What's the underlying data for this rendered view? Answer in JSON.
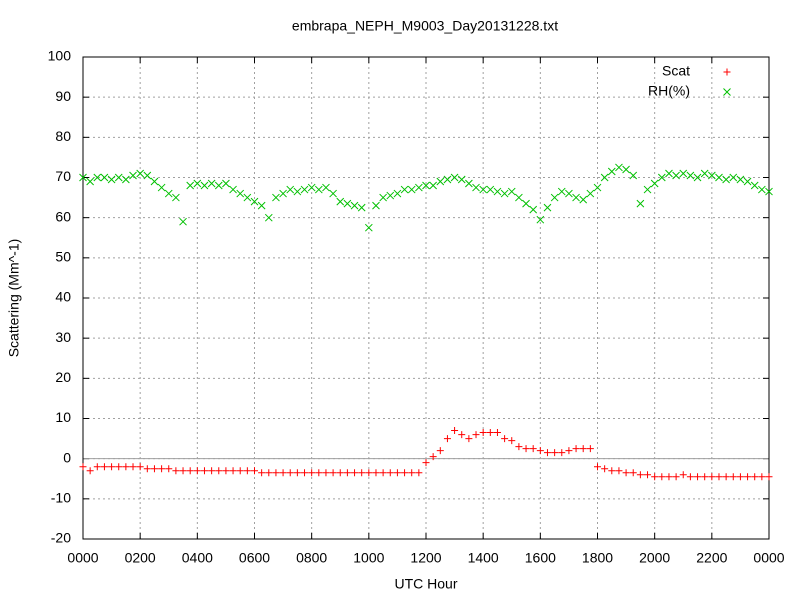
{
  "chart_data": {
    "type": "scatter",
    "title": "embrapa_NEPH_M9003_Day20131228.txt",
    "xlabel": "UTC Hour",
    "ylabel": "Scattering (Mm^-1)",
    "x": [
      0,
      0.25,
      0.5,
      0.75,
      1,
      1.25,
      1.5,
      1.75,
      2,
      2.25,
      2.5,
      2.75,
      3,
      3.25,
      3.5,
      3.75,
      4,
      4.25,
      4.5,
      4.75,
      5,
      5.25,
      5.5,
      5.75,
      6,
      6.25,
      6.5,
      6.75,
      7,
      7.25,
      7.5,
      7.75,
      8,
      8.25,
      8.5,
      8.75,
      9,
      9.25,
      9.5,
      9.75,
      10,
      10.25,
      10.5,
      10.75,
      11,
      11.25,
      11.5,
      11.75,
      12,
      12.25,
      12.5,
      12.75,
      13,
      13.25,
      13.5,
      13.75,
      14,
      14.25,
      14.5,
      14.75,
      15,
      15.25,
      15.5,
      15.75,
      16,
      16.25,
      16.5,
      16.75,
      17,
      17.25,
      17.5,
      17.75,
      18,
      18.25,
      18.5,
      18.75,
      19,
      19.25,
      19.5,
      19.75,
      20,
      20.25,
      20.5,
      20.75,
      21,
      21.25,
      21.5,
      21.75,
      22,
      22.25,
      22.5,
      22.75,
      23,
      23.25,
      23.5,
      23.75,
      24
    ],
    "series": [
      {
        "name": "Scat",
        "color": "#ff0000",
        "marker": "plus",
        "values": [
          -2,
          -3,
          -2,
          -2,
          -2,
          -2,
          -2,
          -2,
          -2,
          -2.5,
          -2.5,
          -2.5,
          -2.5,
          -3,
          -3,
          -3,
          -3,
          -3,
          -3,
          -3,
          -3,
          -3,
          -3,
          -3,
          -3,
          -3.5,
          -3.5,
          -3.5,
          -3.5,
          -3.5,
          -3.5,
          -3.5,
          -3.5,
          -3.5,
          -3.5,
          -3.5,
          -3.5,
          -3.5,
          -3.5,
          -3.5,
          -3.5,
          -3.5,
          -3.5,
          -3.5,
          -3.5,
          -3.5,
          -3.5,
          -3.5,
          -1,
          0.5,
          2,
          5,
          7,
          6,
          5,
          6,
          6.5,
          6.5,
          6.5,
          5,
          4.5,
          3,
          2.5,
          2.5,
          2,
          1.5,
          1.5,
          1.5,
          2,
          2.5,
          2.5,
          2.5,
          -2,
          -2.5,
          -3,
          -3,
          -3.5,
          -3.5,
          -4,
          -4,
          -4.5,
          -4.5,
          -4.5,
          -4.5,
          -4,
          -4.5,
          -4.5,
          -4.5,
          -4.5,
          -4.5,
          -4.5,
          -4.5,
          -4.5,
          -4.5,
          -4.5,
          -4.5,
          -4.5
        ]
      },
      {
        "name": "RH(%)",
        "color": "#00c000",
        "marker": "cross",
        "values": [
          70,
          69,
          70,
          70,
          69.5,
          70,
          69.5,
          70.5,
          71,
          70.5,
          69,
          67.5,
          66,
          65,
          59,
          68,
          68.5,
          68,
          68.5,
          68,
          68.5,
          67,
          66,
          65,
          64,
          63,
          60,
          65,
          66,
          67,
          66.5,
          67,
          67.5,
          67,
          67.5,
          66,
          64,
          63.5,
          63,
          62.5,
          57.5,
          63,
          65,
          65.5,
          66,
          67,
          67,
          67.5,
          68,
          68,
          69,
          69.5,
          70,
          69.5,
          68.5,
          67.5,
          67,
          67,
          66.5,
          66,
          66.5,
          65,
          63.5,
          62,
          59.5,
          62.5,
          65,
          66.5,
          66,
          65,
          64.5,
          66,
          67.5,
          70,
          71.5,
          72.5,
          72,
          70.5,
          63.5,
          67,
          68.5,
          70,
          71,
          70.5,
          71,
          70.5,
          70,
          71,
          70.5,
          70,
          69.5,
          70,
          69.5,
          69,
          68,
          67,
          66.5
        ]
      }
    ],
    "xlim": [
      0,
      24
    ],
    "xticks": [
      {
        "value": 0,
        "label": "0000"
      },
      {
        "value": 2,
        "label": "0200"
      },
      {
        "value": 4,
        "label": "0400"
      },
      {
        "value": 6,
        "label": "0600"
      },
      {
        "value": 8,
        "label": "0800"
      },
      {
        "value": 10,
        "label": "1000"
      },
      {
        "value": 12,
        "label": "1200"
      },
      {
        "value": 14,
        "label": "1400"
      },
      {
        "value": 16,
        "label": "1600"
      },
      {
        "value": 18,
        "label": "1800"
      },
      {
        "value": 20,
        "label": "2000"
      },
      {
        "value": 22,
        "label": "2200"
      },
      {
        "value": 24,
        "label": "0000"
      }
    ],
    "ylim": [
      -20,
      100
    ],
    "yticks": [
      -20,
      -10,
      0,
      10,
      20,
      30,
      40,
      50,
      60,
      70,
      80,
      90,
      100
    ],
    "grid": true,
    "zero_line": true,
    "legend": "top-right"
  }
}
